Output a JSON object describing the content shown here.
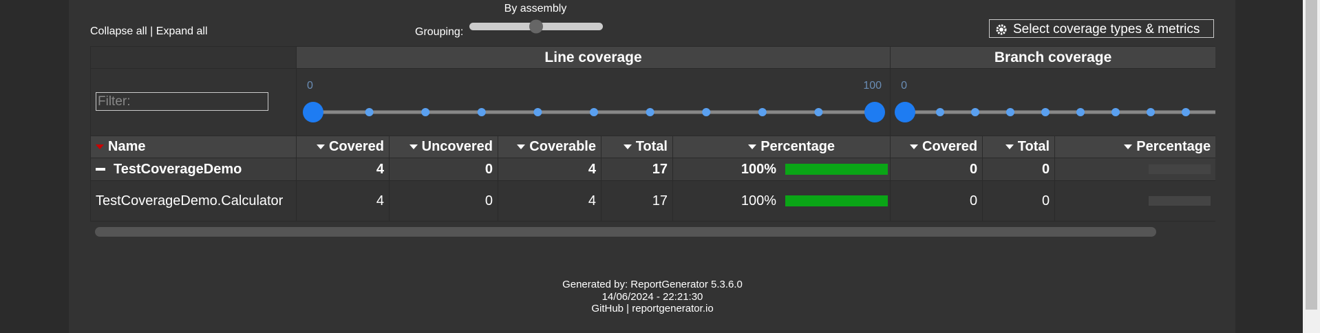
{
  "toolbar": {
    "collapse_all": "Collapse all",
    "separator": "|",
    "expand_all": "Expand all",
    "grouping_label": "Grouping:",
    "grouping_value": "By assembly",
    "metrics_button": "Select coverage types & metrics"
  },
  "table": {
    "groups": [
      "Line coverage",
      "Branch coverage"
    ],
    "filter_placeholder": "Filter:",
    "line_slider": {
      "min": 0,
      "max": 100
    },
    "branch_slider": {
      "min": 0
    },
    "columns": [
      "Name",
      "Covered",
      "Uncovered",
      "Coverable",
      "Total",
      "Percentage",
      "Covered",
      "Total",
      "Percentage"
    ],
    "rows": [
      [
        "TestCoverageDemo",
        4,
        0,
        4,
        17,
        "100%",
        0,
        0
      ],
      [
        "TestCoverageDemo.Calculator",
        4,
        0,
        4,
        17,
        "100%",
        0,
        0
      ]
    ]
  },
  "footer": {
    "generated": "Generated by: ReportGenerator 5.3.6.0",
    "timestamp": "14/06/2024 - 22:21:30",
    "github": "GitHub",
    "separator": "|",
    "site": "reportgenerator.io"
  }
}
